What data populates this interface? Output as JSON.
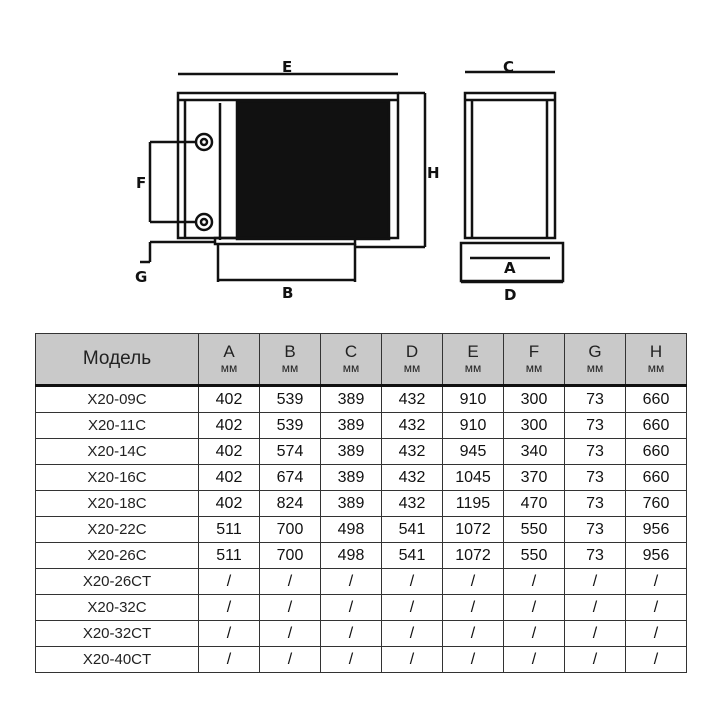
{
  "drawing": {
    "labels": {
      "E": "E",
      "C": "C",
      "H": "H",
      "F": "F",
      "G": "G",
      "B": "B",
      "A": "A",
      "D": "D"
    }
  },
  "table": {
    "headers": [
      {
        "label": "Модель",
        "unit": ""
      },
      {
        "label": "A",
        "unit": "мм"
      },
      {
        "label": "B",
        "unit": "мм"
      },
      {
        "label": "C",
        "unit": "мм"
      },
      {
        "label": "D",
        "unit": "мм"
      },
      {
        "label": "E",
        "unit": "мм"
      },
      {
        "label": "F",
        "unit": "мм"
      },
      {
        "label": "G",
        "unit": "мм"
      },
      {
        "label": "H",
        "unit": "мм"
      }
    ],
    "rows": [
      [
        "X20-09C",
        "402",
        "539",
        "389",
        "432",
        "910",
        "300",
        "73",
        "660"
      ],
      [
        "X20-11C",
        "402",
        "539",
        "389",
        "432",
        "910",
        "300",
        "73",
        "660"
      ],
      [
        "X20-14C",
        "402",
        "574",
        "389",
        "432",
        "945",
        "340",
        "73",
        "660"
      ],
      [
        "X20-16C",
        "402",
        "674",
        "389",
        "432",
        "1045",
        "370",
        "73",
        "660"
      ],
      [
        "X20-18C",
        "402",
        "824",
        "389",
        "432",
        "1195",
        "470",
        "73",
        "760"
      ],
      [
        "X20-22C",
        "511",
        "700",
        "498",
        "541",
        "1072",
        "550",
        "73",
        "956"
      ],
      [
        "X20-26C",
        "511",
        "700",
        "498",
        "541",
        "1072",
        "550",
        "73",
        "956"
      ],
      [
        "X20-26CT",
        "/",
        "/",
        "/",
        "/",
        "/",
        "/",
        "/",
        "/"
      ],
      [
        "X20-32C",
        "/",
        "/",
        "/",
        "/",
        "/",
        "/",
        "/",
        "/"
      ],
      [
        "X20-32CT",
        "/",
        "/",
        "/",
        "/",
        "/",
        "/",
        "/",
        "/"
      ],
      [
        "X20-40CT",
        "/",
        "/",
        "/",
        "/",
        "/",
        "/",
        "/",
        "/"
      ]
    ]
  }
}
